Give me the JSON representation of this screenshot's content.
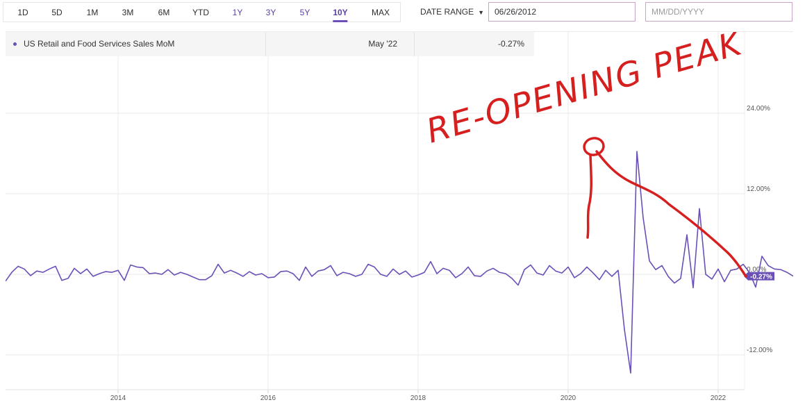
{
  "toolbar": {
    "ranges": [
      "1D",
      "5D",
      "1M",
      "3M",
      "6M",
      "YTD",
      "1Y",
      "3Y",
      "5Y",
      "10Y",
      "MAX"
    ],
    "active_range": "10Y",
    "date_range_label": "DATE RANGE",
    "start_date": "06/26/2012",
    "end_date_placeholder": "MM/DD/YYYY"
  },
  "legend": {
    "series_name": "US Retail and Food Services Sales MoM",
    "date": "May '22",
    "value": "-0.27%"
  },
  "colors": {
    "series": "#6a4fb6",
    "annotation": "#d62020",
    "active_tab": "#5b3fa5"
  },
  "annotation": {
    "text": "RE-OPENING PEAK"
  },
  "chart_data": {
    "type": "line",
    "title": "",
    "xlabel": "",
    "ylabel": "",
    "x_range": [
      "2012-07",
      "2022-05"
    ],
    "ylim": [
      -14.5,
      24.5
    ],
    "y_ticks": [
      -12,
      0,
      12,
      24
    ],
    "y_tick_labels": [
      "-12.00%",
      "0.00%",
      "12.00%",
      "24.00%"
    ],
    "x_tick_labels": [
      "2014",
      "2016",
      "2018",
      "2020",
      "2022"
    ],
    "grid": true,
    "last_value_label": "-0.27%",
    "series": [
      {
        "name": "US Retail and Food Services Sales MoM",
        "start": "2012-07",
        "frequency": "monthly",
        "values": [
          -1.0,
          0.3,
          1.2,
          0.8,
          -0.2,
          0.5,
          0.3,
          0.8,
          1.2,
          -0.9,
          -0.6,
          0.9,
          0.1,
          0.8,
          -0.3,
          0.1,
          0.4,
          0.3,
          0.6,
          -0.9,
          1.4,
          1.1,
          1.0,
          0.1,
          0.2,
          0.0,
          0.7,
          -0.1,
          0.3,
          0.0,
          -0.4,
          -0.8,
          -0.8,
          -0.2,
          1.5,
          0.2,
          0.6,
          0.2,
          -0.3,
          0.4,
          -0.1,
          0.1,
          -0.5,
          -0.4,
          0.4,
          0.5,
          0.1,
          -0.9,
          1.1,
          -0.3,
          0.5,
          0.7,
          1.3,
          -0.2,
          0.3,
          0.1,
          -0.3,
          0.0,
          1.5,
          1.1,
          0.0,
          -0.3,
          0.8,
          0.0,
          0.5,
          -0.4,
          -0.1,
          0.3,
          1.9,
          0.1,
          0.9,
          0.6,
          -0.5,
          0.1,
          1.1,
          -0.2,
          -0.3,
          0.5,
          0.9,
          0.3,
          0.1,
          -0.6,
          -1.6,
          0.7,
          1.4,
          0.2,
          -0.1,
          1.3,
          0.5,
          0.2,
          1.1,
          -0.5,
          0.1,
          1.1,
          0.2,
          -0.8,
          0.6,
          -0.3,
          0.6,
          -8.2,
          -14.7,
          18.3,
          8.4,
          2.0,
          0.7,
          1.3,
          -0.3,
          -1.3,
          -0.6,
          5.9,
          -2.0,
          9.8,
          0.0,
          -0.7,
          0.8,
          -1.1,
          0.6,
          0.8,
          1.5,
          0.3,
          -1.9,
          2.7,
          1.3,
          0.8,
          0.7,
          0.3,
          -0.27
        ]
      }
    ]
  }
}
